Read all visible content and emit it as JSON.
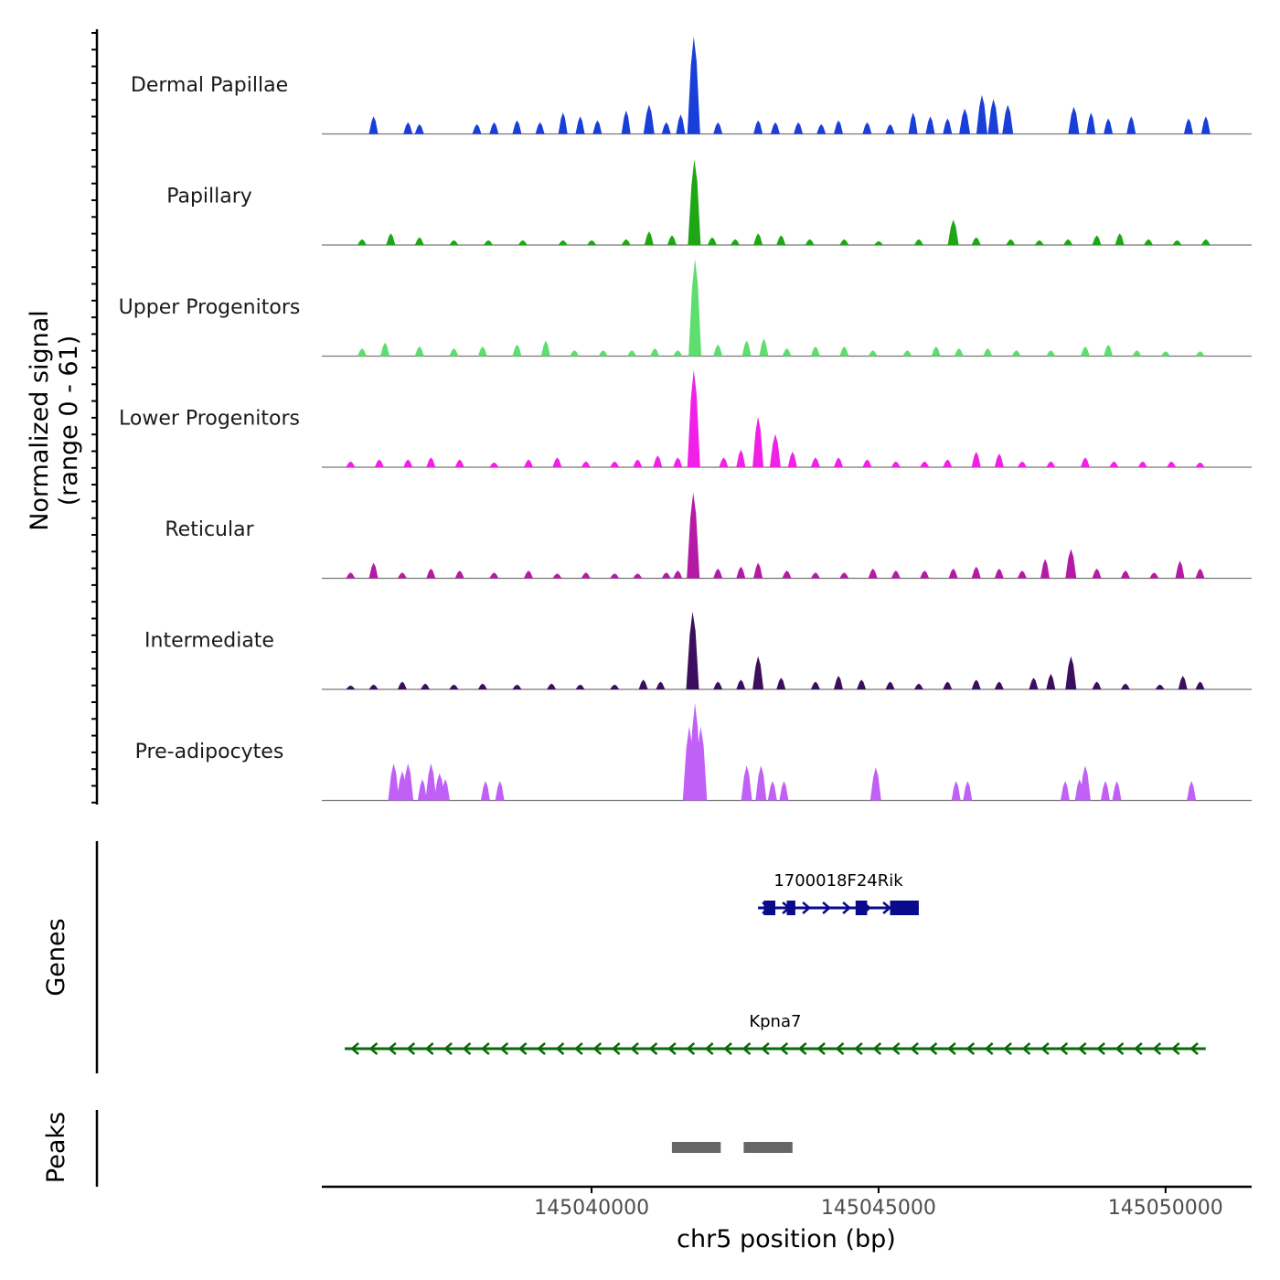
{
  "chart_data": {
    "type": "area",
    "title": "",
    "ylabel_line1": "Normalized signal",
    "ylabel_line2": "(range 0 - 61)",
    "xlabel": "chr5 position (bp)",
    "xlim": [
      145035300,
      145051500
    ],
    "ylim": [
      0,
      61
    ],
    "x_ticks": [
      145040000,
      145045000,
      145050000
    ],
    "x_tick_labels": [
      "145040000",
      "145045000",
      "145050000"
    ],
    "tracks": [
      {
        "name": "Dermal Papillae",
        "color": "#1a3fd9",
        "peak_max": 61,
        "peaks": [
          [
            145036200,
            0.18
          ],
          [
            145036800,
            0.12
          ],
          [
            145037000,
            0.1
          ],
          [
            145038000,
            0.1
          ],
          [
            145038300,
            0.12
          ],
          [
            145038700,
            0.14
          ],
          [
            145039100,
            0.12
          ],
          [
            145039500,
            0.22
          ],
          [
            145039800,
            0.18
          ],
          [
            145040100,
            0.14
          ],
          [
            145040600,
            0.24
          ],
          [
            145041000,
            0.3
          ],
          [
            145041300,
            0.12
          ],
          [
            145041550,
            0.2
          ],
          [
            145041780,
            1.0
          ],
          [
            145042200,
            0.12
          ],
          [
            145042900,
            0.14
          ],
          [
            145043200,
            0.12
          ],
          [
            145043600,
            0.12
          ],
          [
            145044000,
            0.1
          ],
          [
            145044300,
            0.14
          ],
          [
            145044800,
            0.12
          ],
          [
            145045200,
            0.1
          ],
          [
            145045600,
            0.22
          ],
          [
            145045900,
            0.18
          ],
          [
            145046200,
            0.16
          ],
          [
            145046500,
            0.26
          ],
          [
            145046800,
            0.4
          ],
          [
            145047000,
            0.36
          ],
          [
            145047250,
            0.3
          ],
          [
            145048400,
            0.28
          ],
          [
            145048700,
            0.22
          ],
          [
            145049000,
            0.16
          ],
          [
            145049400,
            0.18
          ],
          [
            145050400,
            0.16
          ],
          [
            145050700,
            0.18
          ]
        ]
      },
      {
        "name": "Papillary",
        "color": "#1fa615",
        "peak_max": 61,
        "peaks": [
          [
            145036000,
            0.06
          ],
          [
            145036500,
            0.12
          ],
          [
            145037000,
            0.08
          ],
          [
            145037600,
            0.05
          ],
          [
            145038200,
            0.05
          ],
          [
            145038800,
            0.05
          ],
          [
            145039500,
            0.05
          ],
          [
            145040000,
            0.05
          ],
          [
            145040600,
            0.06
          ],
          [
            145041000,
            0.14
          ],
          [
            145041400,
            0.1
          ],
          [
            145041790,
            0.88
          ],
          [
            145042100,
            0.08
          ],
          [
            145042500,
            0.06
          ],
          [
            145042900,
            0.12
          ],
          [
            145043300,
            0.1
          ],
          [
            145043800,
            0.06
          ],
          [
            145044400,
            0.06
          ],
          [
            145045000,
            0.04
          ],
          [
            145045700,
            0.06
          ],
          [
            145046300,
            0.26
          ],
          [
            145046700,
            0.08
          ],
          [
            145047300,
            0.06
          ],
          [
            145047800,
            0.05
          ],
          [
            145048300,
            0.06
          ],
          [
            145048800,
            0.1
          ],
          [
            145049200,
            0.12
          ],
          [
            145049700,
            0.06
          ],
          [
            145050200,
            0.05
          ],
          [
            145050700,
            0.06
          ]
        ]
      },
      {
        "name": "Upper Progenitors",
        "color": "#5ede6f",
        "peak_max": 61,
        "peaks": [
          [
            145036000,
            0.08
          ],
          [
            145036400,
            0.14
          ],
          [
            145037000,
            0.1
          ],
          [
            145037600,
            0.08
          ],
          [
            145038100,
            0.1
          ],
          [
            145038700,
            0.12
          ],
          [
            145039200,
            0.16
          ],
          [
            145039700,
            0.06
          ],
          [
            145040200,
            0.06
          ],
          [
            145040700,
            0.06
          ],
          [
            145041100,
            0.08
          ],
          [
            145041500,
            0.06
          ],
          [
            145041800,
            1.0
          ],
          [
            145042200,
            0.12
          ],
          [
            145042700,
            0.16
          ],
          [
            145043000,
            0.18
          ],
          [
            145043400,
            0.08
          ],
          [
            145043900,
            0.1
          ],
          [
            145044400,
            0.1
          ],
          [
            145044900,
            0.06
          ],
          [
            145045500,
            0.06
          ],
          [
            145046000,
            0.1
          ],
          [
            145046400,
            0.08
          ],
          [
            145046900,
            0.08
          ],
          [
            145047400,
            0.06
          ],
          [
            145048000,
            0.06
          ],
          [
            145048600,
            0.1
          ],
          [
            145049000,
            0.12
          ],
          [
            145049500,
            0.06
          ],
          [
            145050000,
            0.05
          ],
          [
            145050600,
            0.05
          ]
        ]
      },
      {
        "name": "Lower Progenitors",
        "color": "#f020e6",
        "peak_max": 61,
        "peaks": [
          [
            145035800,
            0.06
          ],
          [
            145036300,
            0.08
          ],
          [
            145036800,
            0.08
          ],
          [
            145037200,
            0.1
          ],
          [
            145037700,
            0.08
          ],
          [
            145038300,
            0.05
          ],
          [
            145038900,
            0.08
          ],
          [
            145039400,
            0.1
          ],
          [
            145039900,
            0.06
          ],
          [
            145040400,
            0.06
          ],
          [
            145040800,
            0.08
          ],
          [
            145041150,
            0.12
          ],
          [
            145041500,
            0.1
          ],
          [
            145041780,
            1.0
          ],
          [
            145042300,
            0.1
          ],
          [
            145042600,
            0.18
          ],
          [
            145042900,
            0.52
          ],
          [
            145043200,
            0.34
          ],
          [
            145043500,
            0.16
          ],
          [
            145043900,
            0.1
          ],
          [
            145044300,
            0.1
          ],
          [
            145044800,
            0.08
          ],
          [
            145045300,
            0.06
          ],
          [
            145045800,
            0.06
          ],
          [
            145046200,
            0.08
          ],
          [
            145046700,
            0.16
          ],
          [
            145047100,
            0.14
          ],
          [
            145047500,
            0.06
          ],
          [
            145048000,
            0.06
          ],
          [
            145048600,
            0.1
          ],
          [
            145049100,
            0.06
          ],
          [
            145049600,
            0.06
          ],
          [
            145050100,
            0.06
          ],
          [
            145050600,
            0.05
          ]
        ]
      },
      {
        "name": "Reticular",
        "color": "#b51aa6",
        "peak_max": 61,
        "peaks": [
          [
            145035800,
            0.06
          ],
          [
            145036200,
            0.16
          ],
          [
            145036700,
            0.06
          ],
          [
            145037200,
            0.1
          ],
          [
            145037700,
            0.08
          ],
          [
            145038300,
            0.06
          ],
          [
            145038900,
            0.08
          ],
          [
            145039400,
            0.05
          ],
          [
            145039900,
            0.06
          ],
          [
            145040400,
            0.05
          ],
          [
            145040800,
            0.05
          ],
          [
            145041300,
            0.06
          ],
          [
            145041500,
            0.08
          ],
          [
            145041770,
            0.88
          ],
          [
            145042200,
            0.1
          ],
          [
            145042600,
            0.12
          ],
          [
            145042900,
            0.16
          ],
          [
            145043400,
            0.08
          ],
          [
            145043900,
            0.06
          ],
          [
            145044400,
            0.06
          ],
          [
            145044900,
            0.1
          ],
          [
            145045300,
            0.08
          ],
          [
            145045800,
            0.08
          ],
          [
            145046300,
            0.1
          ],
          [
            145046700,
            0.12
          ],
          [
            145047100,
            0.1
          ],
          [
            145047500,
            0.08
          ],
          [
            145047900,
            0.2
          ],
          [
            145048350,
            0.3
          ],
          [
            145048800,
            0.1
          ],
          [
            145049300,
            0.08
          ],
          [
            145049800,
            0.06
          ],
          [
            145050250,
            0.18
          ],
          [
            145050600,
            0.1
          ]
        ]
      },
      {
        "name": "Intermediate",
        "color": "#3b0f5e",
        "peak_max": 61,
        "peaks": [
          [
            145035800,
            0.04
          ],
          [
            145036200,
            0.05
          ],
          [
            145036700,
            0.08
          ],
          [
            145037100,
            0.06
          ],
          [
            145037600,
            0.05
          ],
          [
            145038100,
            0.06
          ],
          [
            145038700,
            0.05
          ],
          [
            145039300,
            0.06
          ],
          [
            145039800,
            0.05
          ],
          [
            145040400,
            0.05
          ],
          [
            145040900,
            0.1
          ],
          [
            145041200,
            0.08
          ],
          [
            145041760,
            0.8
          ],
          [
            145042200,
            0.08
          ],
          [
            145042600,
            0.1
          ],
          [
            145042900,
            0.34
          ],
          [
            145043300,
            0.12
          ],
          [
            145043900,
            0.08
          ],
          [
            145044300,
            0.14
          ],
          [
            145044700,
            0.1
          ],
          [
            145045200,
            0.08
          ],
          [
            145045700,
            0.06
          ],
          [
            145046200,
            0.08
          ],
          [
            145046700,
            0.1
          ],
          [
            145047100,
            0.08
          ],
          [
            145047700,
            0.12
          ],
          [
            145048000,
            0.16
          ],
          [
            145048350,
            0.34
          ],
          [
            145048800,
            0.08
          ],
          [
            145049300,
            0.06
          ],
          [
            145049900,
            0.05
          ],
          [
            145050300,
            0.14
          ],
          [
            145050600,
            0.08
          ]
        ]
      },
      {
        "name": "Pre-adipocytes",
        "color": "#c160f5",
        "peak_max": 61,
        "peaks": [
          [
            145036550,
            0.38
          ],
          [
            145036700,
            0.3
          ],
          [
            145036800,
            0.38
          ],
          [
            145037050,
            0.22
          ],
          [
            145037200,
            0.38
          ],
          [
            145037350,
            0.28
          ],
          [
            145037450,
            0.22
          ],
          [
            145038150,
            0.2
          ],
          [
            145038400,
            0.2
          ],
          [
            145041700,
            0.76
          ],
          [
            145041800,
            1.0
          ],
          [
            145041900,
            0.76
          ],
          [
            145042700,
            0.36
          ],
          [
            145042950,
            0.36
          ],
          [
            145043150,
            0.2
          ],
          [
            145043350,
            0.2
          ],
          [
            145044950,
            0.34
          ],
          [
            145046350,
            0.2
          ],
          [
            145046550,
            0.2
          ],
          [
            145048250,
            0.2
          ],
          [
            145048500,
            0.22
          ],
          [
            145048600,
            0.36
          ],
          [
            145048950,
            0.2
          ],
          [
            145049150,
            0.2
          ],
          [
            145050450,
            0.2
          ]
        ]
      }
    ],
    "genes_label": "Genes",
    "genes": [
      {
        "name": "1700018F24Rik",
        "color": "#0a0a8c",
        "strand": "+",
        "start": 145042900,
        "end": 145045700,
        "exons": [
          [
            145043000,
            145043200
          ],
          [
            145043400,
            145043550
          ],
          [
            145044600,
            145044800
          ],
          [
            145045200,
            145045700
          ]
        ]
      },
      {
        "name": "Kpna7",
        "color": "#0a6a0a",
        "strand": "-",
        "start": 145035700,
        "end": 145050700,
        "exons": []
      }
    ],
    "peaks_label": "Peaks",
    "peak_regions": [
      [
        145041400,
        145042250
      ],
      [
        145042650,
        145043500
      ]
    ]
  }
}
